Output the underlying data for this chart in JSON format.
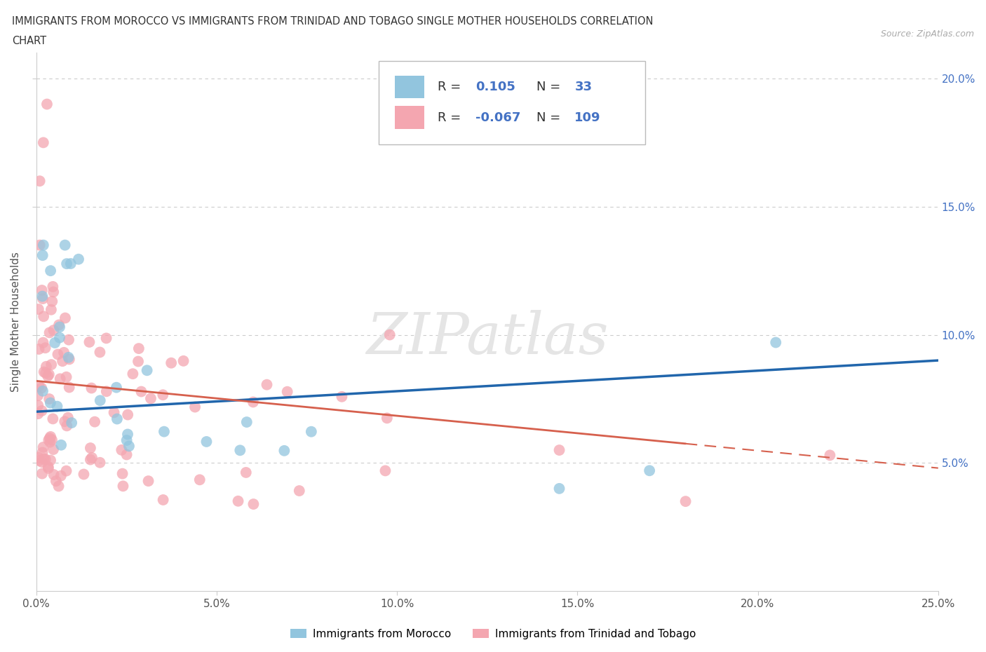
{
  "title_line1": "IMMIGRANTS FROM MOROCCO VS IMMIGRANTS FROM TRINIDAD AND TOBAGO SINGLE MOTHER HOUSEHOLDS CORRELATION",
  "title_line2": "CHART",
  "source": "Source: ZipAtlas.com",
  "ylabel": "Single Mother Households",
  "xlim": [
    0.0,
    0.25
  ],
  "ylim": [
    0.0,
    0.21
  ],
  "xticks": [
    0.0,
    0.05,
    0.1,
    0.15,
    0.2,
    0.25
  ],
  "yticks_right": [
    0.05,
    0.1,
    0.15,
    0.2
  ],
  "ytick_labels_right": [
    "5.0%",
    "10.0%",
    "15.0%",
    "20.0%"
  ],
  "xtick_labels": [
    "0.0%",
    "5.0%",
    "10.0%",
    "15.0%",
    "20.0%",
    "25.0%"
  ],
  "morocco_color": "#92c5de",
  "morocco_color_line": "#2166ac",
  "tobago_color": "#f4a6b0",
  "tobago_color_line": "#d6604d",
  "morocco_R": 0.105,
  "morocco_N": 33,
  "tobago_R": -0.067,
  "tobago_N": 109,
  "watermark": "ZIPatlas",
  "background_color": "#ffffff",
  "grid_color": "#cccccc",
  "morocco_trend_x0": 0.0,
  "morocco_trend_y0": 0.07,
  "morocco_trend_x1": 0.25,
  "morocco_trend_y1": 0.09,
  "tobago_trend_x0": 0.0,
  "tobago_trend_y0": 0.082,
  "tobago_trend_x1": 0.25,
  "tobago_trend_y1": 0.048
}
